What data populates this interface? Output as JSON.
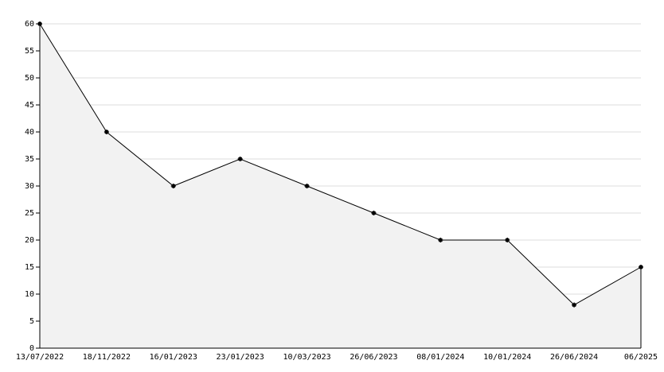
{
  "chart_data": {
    "type": "area",
    "categories": [
      "13/07/2022",
      "18/11/2022",
      "16/01/2023",
      "23/01/2023",
      "10/03/2023",
      "26/06/2023",
      "08/01/2024",
      "10/01/2024",
      "26/06/2024",
      "06/2025"
    ],
    "values": [
      60,
      40,
      30,
      35,
      30,
      25,
      20,
      20,
      8,
      15
    ],
    "line_color": "#000000",
    "fill_color": "#f2f2f2",
    "grid_color": "#dddddd",
    "ylim": [
      0,
      60
    ],
    "yticks": [
      0,
      5,
      10,
      15,
      20,
      25,
      30,
      35,
      40,
      45,
      50,
      55,
      60
    ],
    "grid": true
  }
}
